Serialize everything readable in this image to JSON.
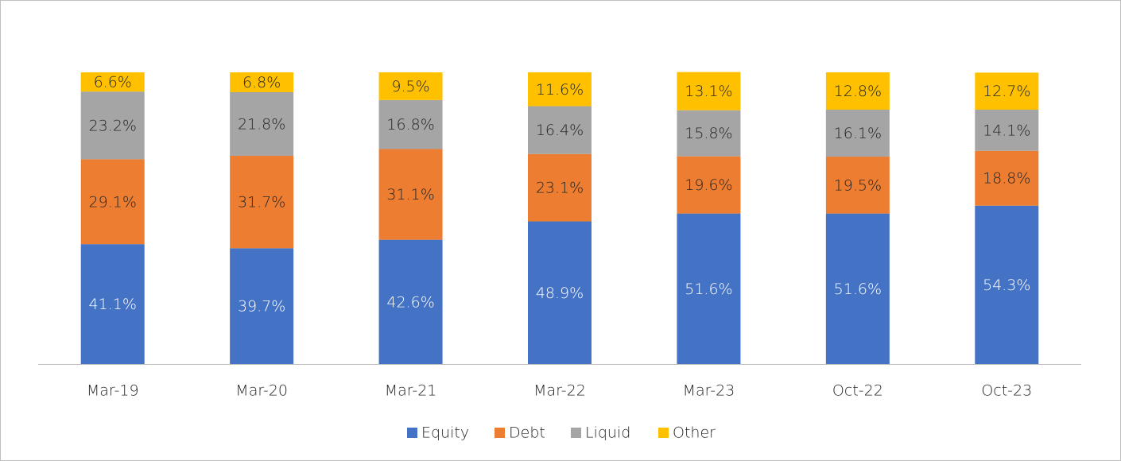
{
  "chart_data": {
    "type": "stacked_bar",
    "categories": [
      "Mar-19",
      "Mar-20",
      "Mar-21",
      "Mar-22",
      "Mar-23",
      "Oct-22",
      "Oct-23"
    ],
    "series": [
      {
        "name": "Equity",
        "color": "#4472c4",
        "values": [
          41.1,
          39.7,
          42.6,
          48.9,
          51.6,
          51.6,
          54.3
        ],
        "value_labels": [
          "41.1%",
          "39.7%",
          "42.6%",
          "48.9%",
          "51.6%",
          "51.6%",
          "54.3%"
        ]
      },
      {
        "name": "Debt",
        "color": "#ed7d31",
        "values": [
          29.1,
          31.7,
          31.1,
          23.1,
          19.6,
          19.5,
          18.8
        ],
        "value_labels": [
          "29.1%",
          "31.7%",
          "31.1%",
          "23.1%",
          "19.6%",
          "19.5%",
          "18.8%"
        ]
      },
      {
        "name": "Liquid",
        "color": "#a5a5a5",
        "values": [
          23.2,
          21.8,
          16.8,
          16.4,
          15.8,
          16.1,
          14.1
        ],
        "value_labels": [
          "23.2%",
          "21.8%",
          "16.8%",
          "16.4%",
          "15.8%",
          "16.1%",
          "14.1%"
        ]
      },
      {
        "name": "Other",
        "color": "#ffc000",
        "values": [
          6.6,
          6.8,
          9.5,
          11.6,
          13.1,
          12.8,
          12.7
        ],
        "value_labels": [
          "6.6%",
          "6.8%",
          "9.5%",
          "11.6%",
          "13.1%",
          "12.8%",
          "12.7%"
        ]
      }
    ],
    "ylim": [
      0,
      100
    ],
    "legend": "bottom"
  }
}
